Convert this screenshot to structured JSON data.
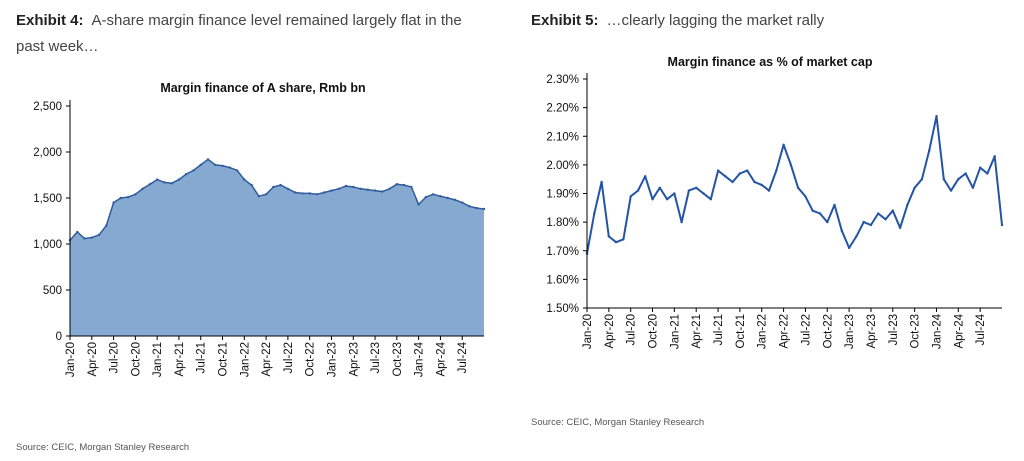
{
  "exhibit4": {
    "number": "Exhibit 4:",
    "title": "A-share margin finance level remained largely flat in the past week…",
    "source": "Source: CEIC, Morgan Stanley Research"
  },
  "exhibit5": {
    "number": "Exhibit 5:",
    "title": "…clearly lagging the market rally",
    "source": "Source: CEIC, Morgan Stanley Research"
  },
  "colors": {
    "area_fill": "#86A9D2",
    "area_line": "#2E5C9C",
    "line": "#2354A5"
  },
  "chart_data": [
    {
      "type": "area",
      "title": "Margin finance of A share, Rmb bn",
      "xlabel": "",
      "ylabel": "",
      "ylim": [
        0,
        2500
      ],
      "yticks": [
        "0",
        "500",
        "1,000",
        "1,500",
        "2,000",
        "2,500"
      ],
      "ytick_values": [
        0,
        500,
        1000,
        1500,
        2000,
        2500
      ],
      "xtick_labels": [
        "Jan-20",
        "Apr-20",
        "Jul-20",
        "Oct-20",
        "Jan-21",
        "Apr-21",
        "Jul-21",
        "Oct-21",
        "Jan-22",
        "Apr-22",
        "Jul-22",
        "Oct-22",
        "Jan-23",
        "Apr-23",
        "Jul-23",
        "Oct-23",
        "Jan-24",
        "Apr-24",
        "Jul-24"
      ],
      "x_start": "Jan-20",
      "x_end": "Oct-24",
      "grid": false,
      "legend": "none",
      "series": [
        {
          "x": [
            "Jan-20",
            "Feb-20",
            "Mar-20",
            "Apr-20",
            "May-20",
            "Jun-20",
            "Jul-20",
            "Aug-20",
            "Sep-20",
            "Oct-20",
            "Nov-20",
            "Dec-20",
            "Jan-21",
            "Feb-21",
            "Mar-21",
            "Apr-21",
            "May-21",
            "Jun-21",
            "Jul-21",
            "Aug-21",
            "Sep-21",
            "Oct-21",
            "Nov-21",
            "Dec-21",
            "Jan-22",
            "Feb-22",
            "Mar-22",
            "Apr-22",
            "May-22",
            "Jun-22",
            "Jul-22",
            "Aug-22",
            "Sep-22",
            "Oct-22",
            "Nov-22",
            "Dec-22",
            "Jan-23",
            "Feb-23",
            "Mar-23",
            "Apr-23",
            "May-23",
            "Jun-23",
            "Jul-23",
            "Aug-23",
            "Sep-23",
            "Oct-23",
            "Nov-23",
            "Dec-23",
            "Jan-24",
            "Feb-24",
            "Mar-24",
            "Apr-24",
            "May-24",
            "Jun-24",
            "Jul-24",
            "Aug-24",
            "Sep-24",
            "Oct-24"
          ],
          "values": [
            1040,
            1130,
            1060,
            1070,
            1100,
            1200,
            1450,
            1500,
            1510,
            1540,
            1600,
            1650,
            1700,
            1670,
            1660,
            1700,
            1760,
            1800,
            1860,
            1920,
            1860,
            1850,
            1830,
            1800,
            1700,
            1640,
            1520,
            1540,
            1620,
            1640,
            1600,
            1560,
            1550,
            1550,
            1540,
            1560,
            1580,
            1600,
            1630,
            1620,
            1600,
            1590,
            1580,
            1570,
            1600,
            1650,
            1640,
            1620,
            1430,
            1510,
            1540,
            1520,
            1500,
            1480,
            1450,
            1410,
            1390,
            1380
          ]
        }
      ]
    },
    {
      "type": "line",
      "title": "Margin finance as % of market cap",
      "xlabel": "",
      "ylabel": "",
      "ylim": [
        1.5,
        2.3
      ],
      "yticks": [
        "1.50%",
        "1.60%",
        "1.70%",
        "1.80%",
        "1.90%",
        "2.00%",
        "2.10%",
        "2.20%",
        "2.30%"
      ],
      "ytick_values": [
        1.5,
        1.6,
        1.7,
        1.8,
        1.9,
        2.0,
        2.1,
        2.2,
        2.3
      ],
      "xtick_labels": [
        "Jan-20",
        "Apr-20",
        "Jul-20",
        "Oct-20",
        "Jan-21",
        "Apr-21",
        "Jul-21",
        "Oct-21",
        "Jan-22",
        "Apr-22",
        "Jul-22",
        "Oct-22",
        "Jan-23",
        "Apr-23",
        "Jul-23",
        "Oct-23",
        "Jan-24",
        "Apr-24",
        "Jul-24"
      ],
      "x_start": "Jan-20",
      "x_end": "Oct-24",
      "grid": false,
      "legend": "none",
      "series": [
        {
          "x": [
            "Jan-20",
            "Feb-20",
            "Mar-20",
            "Apr-20",
            "May-20",
            "Jun-20",
            "Jul-20",
            "Aug-20",
            "Sep-20",
            "Oct-20",
            "Nov-20",
            "Dec-20",
            "Jan-21",
            "Feb-21",
            "Mar-21",
            "Apr-21",
            "May-21",
            "Jun-21",
            "Jul-21",
            "Aug-21",
            "Sep-21",
            "Oct-21",
            "Nov-21",
            "Dec-21",
            "Jan-22",
            "Feb-22",
            "Mar-22",
            "Apr-22",
            "May-22",
            "Jun-22",
            "Jul-22",
            "Aug-22",
            "Sep-22",
            "Oct-22",
            "Nov-22",
            "Dec-22",
            "Jan-23",
            "Feb-23",
            "Mar-23",
            "Apr-23",
            "May-23",
            "Jun-23",
            "Jul-23",
            "Aug-23",
            "Sep-23",
            "Oct-23",
            "Nov-23",
            "Dec-23",
            "Jan-24",
            "Feb-24",
            "Mar-24",
            "Apr-24",
            "May-24",
            "Jun-24",
            "Jul-24",
            "Aug-24",
            "Sep-24",
            "Oct-24"
          ],
          "values": [
            1.69,
            1.83,
            1.94,
            1.75,
            1.73,
            1.74,
            1.89,
            1.91,
            1.96,
            1.88,
            1.92,
            1.88,
            1.9,
            1.8,
            1.91,
            1.92,
            1.9,
            1.88,
            1.98,
            1.96,
            1.94,
            1.97,
            1.98,
            1.94,
            1.93,
            1.91,
            1.98,
            2.07,
            2.0,
            1.92,
            1.89,
            1.84,
            1.83,
            1.8,
            1.86,
            1.77,
            1.71,
            1.75,
            1.8,
            1.79,
            1.83,
            1.81,
            1.84,
            1.78,
            1.86,
            1.92,
            1.95,
            2.05,
            2.17,
            1.95,
            1.91,
            1.95,
            1.97,
            1.92,
            1.99,
            1.97,
            2.03,
            1.79
          ]
        }
      ]
    }
  ]
}
